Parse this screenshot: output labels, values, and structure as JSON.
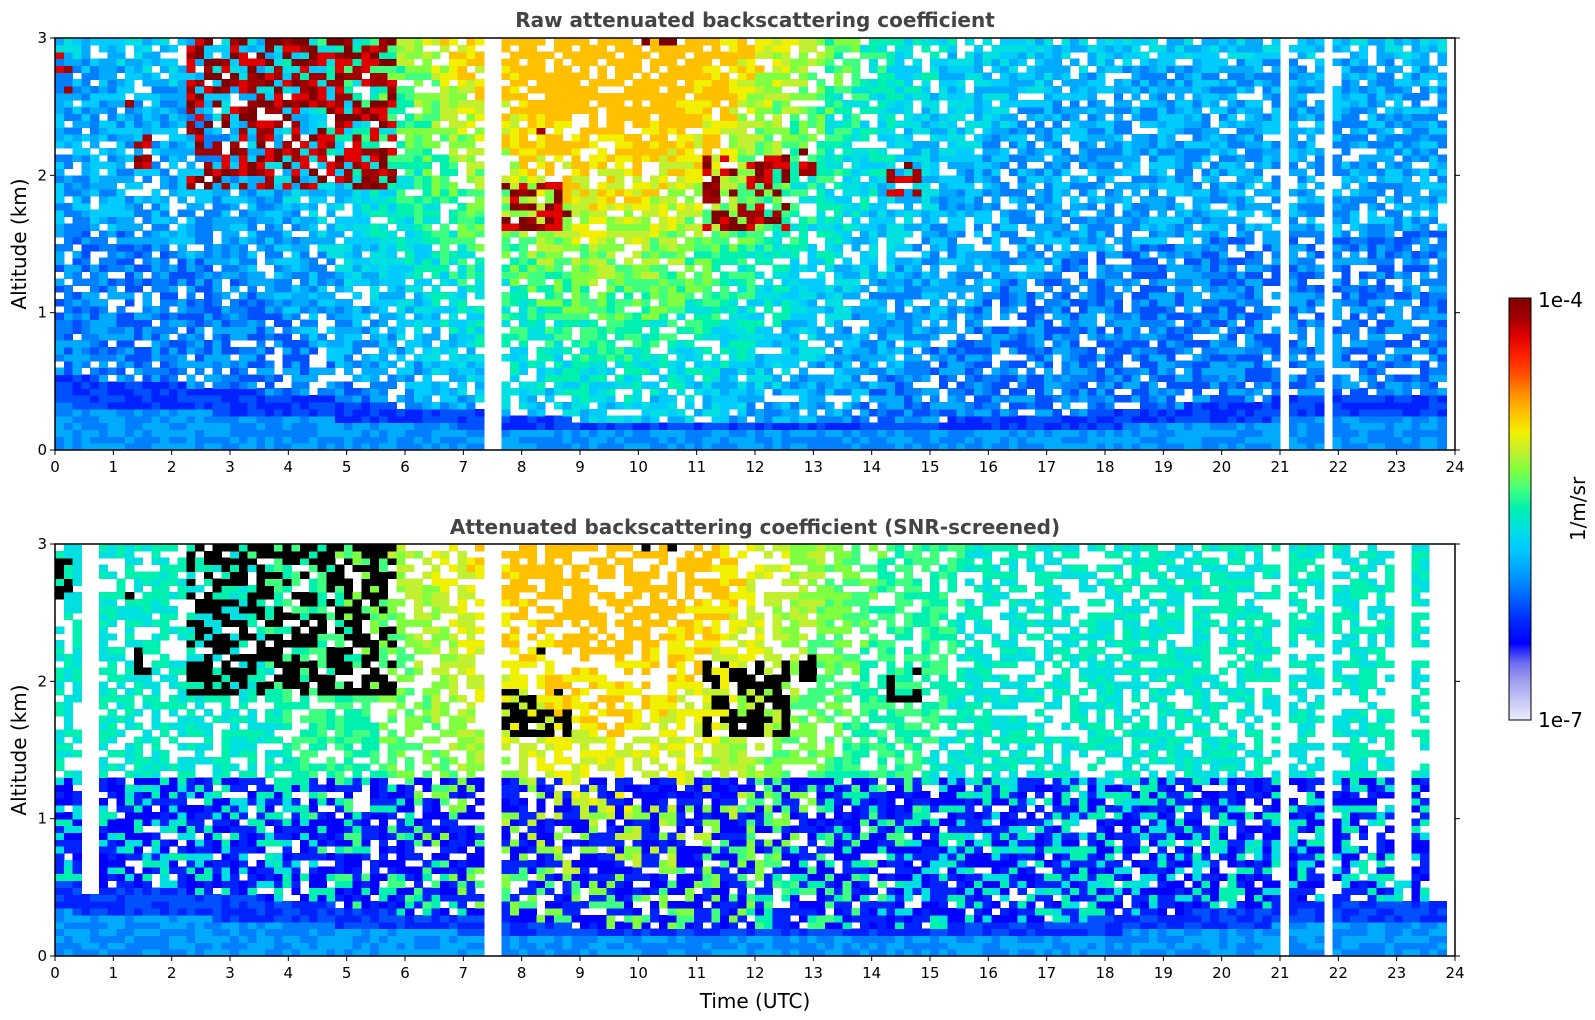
{
  "colors": {
    "background": "#ffffff",
    "title_text": "#444444",
    "axis": "#000000",
    "colormap": [
      "#ececfb",
      "#c8c8f4",
      "#a0a0ee",
      "#6c6cf0",
      "#0000ff",
      "#0022ff",
      "#0050ff",
      "#0080ff",
      "#00aaff",
      "#00ccff",
      "#00e0e0",
      "#00f0b0",
      "#40ff80",
      "#80ff40",
      "#c0f030",
      "#f0f000",
      "#ffc000",
      "#ff9000",
      "#ff5000",
      "#ff2000",
      "#e00000",
      "#a00000",
      "#7f0000"
    ],
    "saturated_cloud": "#000000"
  },
  "chart_data": [
    {
      "type": "heatmap",
      "title": "Raw attenuated backscattering coefficient",
      "xlabel": "",
      "ylabel": "Altitude (km)",
      "xlim": [
        0,
        24
      ],
      "ylim": [
        0,
        3
      ],
      "x_ticks": [
        "0",
        "1",
        "2",
        "3",
        "4",
        "5",
        "6",
        "7",
        "8",
        "9",
        "10",
        "11",
        "12",
        "13",
        "14",
        "15",
        "16",
        "17",
        "18",
        "19",
        "20",
        "21",
        "22",
        "23",
        "24"
      ],
      "y_ticks": [
        "0",
        "1",
        "2",
        "3"
      ],
      "data_end_hour": 23.8,
      "boundary_layer_top_km": [
        [
          0,
          0.55
        ],
        [
          3,
          0.45
        ],
        [
          6,
          0.32
        ],
        [
          9,
          0.22
        ],
        [
          12,
          0.22
        ],
        [
          15,
          0.22
        ],
        [
          18,
          0.28
        ],
        [
          21,
          0.38
        ],
        [
          23.8,
          0.42
        ]
      ],
      "aerosol_background": "noisy blue/cyan near surface rising to green/yellow aloft (7-12 UTC)",
      "cloud_layers": [
        {
          "start": 0.0,
          "end": 0.3,
          "base_km": 2.6,
          "top_km": 2.9
        },
        {
          "start": 1.2,
          "end": 1.4,
          "base_km": 2.5,
          "top_km": 2.7
        },
        {
          "start": 1.3,
          "end": 1.7,
          "base_km": 2.05,
          "top_km": 2.3
        },
        {
          "start": 2.3,
          "end": 5.8,
          "base_km": 1.9,
          "top_km": 3.0
        },
        {
          "start": 7.4,
          "end": 7.6,
          "base_km": 1.8,
          "top_km": 1.95
        },
        {
          "start": 7.7,
          "end": 8.9,
          "base_km": 1.6,
          "top_km": 1.95
        },
        {
          "start": 8.3,
          "end": 8.4,
          "base_km": 2.2,
          "top_km": 2.35
        },
        {
          "start": 10.0,
          "end": 10.7,
          "base_km": 2.95,
          "top_km": 3.0
        },
        {
          "start": 11.1,
          "end": 12.6,
          "base_km": 1.6,
          "top_km": 2.15
        },
        {
          "start": 12.8,
          "end": 13.1,
          "base_km": 2.0,
          "top_km": 2.2
        },
        {
          "start": 13.3,
          "end": 13.4,
          "base_km": 1.95,
          "top_km": 2.05
        },
        {
          "start": 14.3,
          "end": 14.9,
          "base_km": 1.85,
          "top_km": 2.1
        }
      ],
      "missing_profiles_hours": [
        7.4,
        7.55,
        21.05,
        21.75,
        21.85
      ]
    },
    {
      "type": "heatmap",
      "title": "Attenuated backscattering coefficient (SNR-screened)",
      "xlabel": "Time (UTC)",
      "ylabel": "Altitude (km)",
      "xlim": [
        0,
        24
      ],
      "ylim": [
        0,
        3
      ],
      "x_ticks": [
        "0",
        "1",
        "2",
        "3",
        "4",
        "5",
        "6",
        "7",
        "8",
        "9",
        "10",
        "11",
        "12",
        "13",
        "14",
        "15",
        "16",
        "17",
        "18",
        "19",
        "20",
        "21",
        "22",
        "23",
        "24"
      ],
      "y_ticks": [
        "0",
        "1",
        "2",
        "3"
      ],
      "screened_gaps": [
        {
          "start": 0.4,
          "end": 0.7,
          "top_km": 0.45
        },
        {
          "start": 22.9,
          "end": 23.2,
          "top_km": 0.55
        },
        {
          "start": 23.5,
          "end": 23.8,
          "top_km": 0.4
        }
      ]
    }
  ],
  "colorbar": {
    "max_label": "1e-4",
    "min_label": "1e-7",
    "unit_label": "1/m/sr"
  }
}
